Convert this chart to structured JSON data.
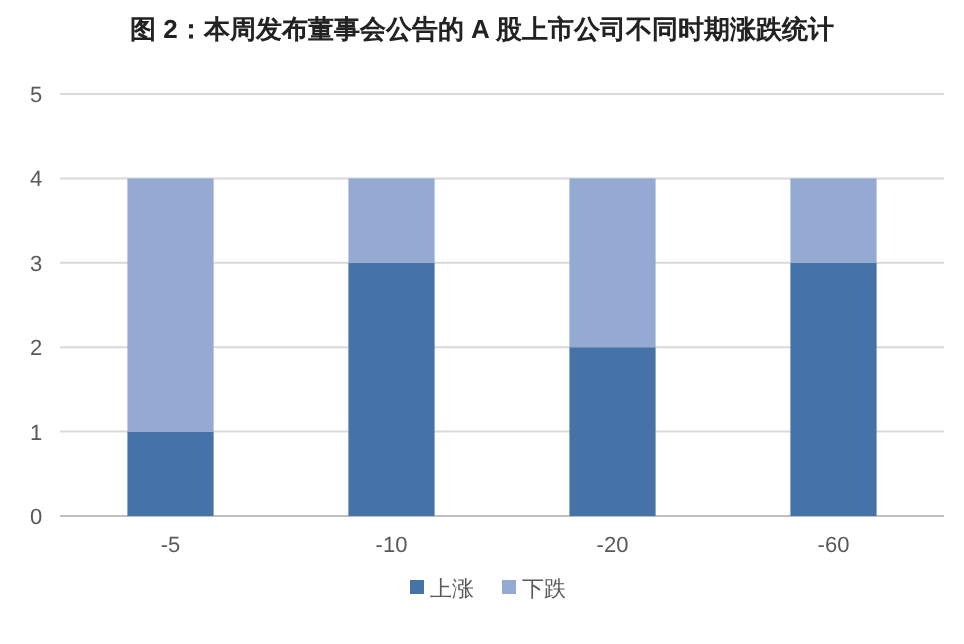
{
  "chart_data": {
    "type": "bar",
    "title": "图 2：本周发布董事会公告的 A 股上市公司不同时期涨跌统计",
    "categories": [
      "-5",
      "-10",
      "-20",
      "-60"
    ],
    "stacked": true,
    "series": [
      {
        "name": "上涨",
        "color": "#4673a7",
        "values": [
          1,
          3,
          2,
          3
        ]
      },
      {
        "name": "下跌",
        "color": "#95aad2",
        "values": [
          3,
          1,
          2,
          1
        ]
      }
    ],
    "ylim": [
      0,
      5
    ],
    "yticks": [
      0,
      1,
      2,
      3,
      4,
      5
    ],
    "grid": "y",
    "legend": "bottom"
  }
}
